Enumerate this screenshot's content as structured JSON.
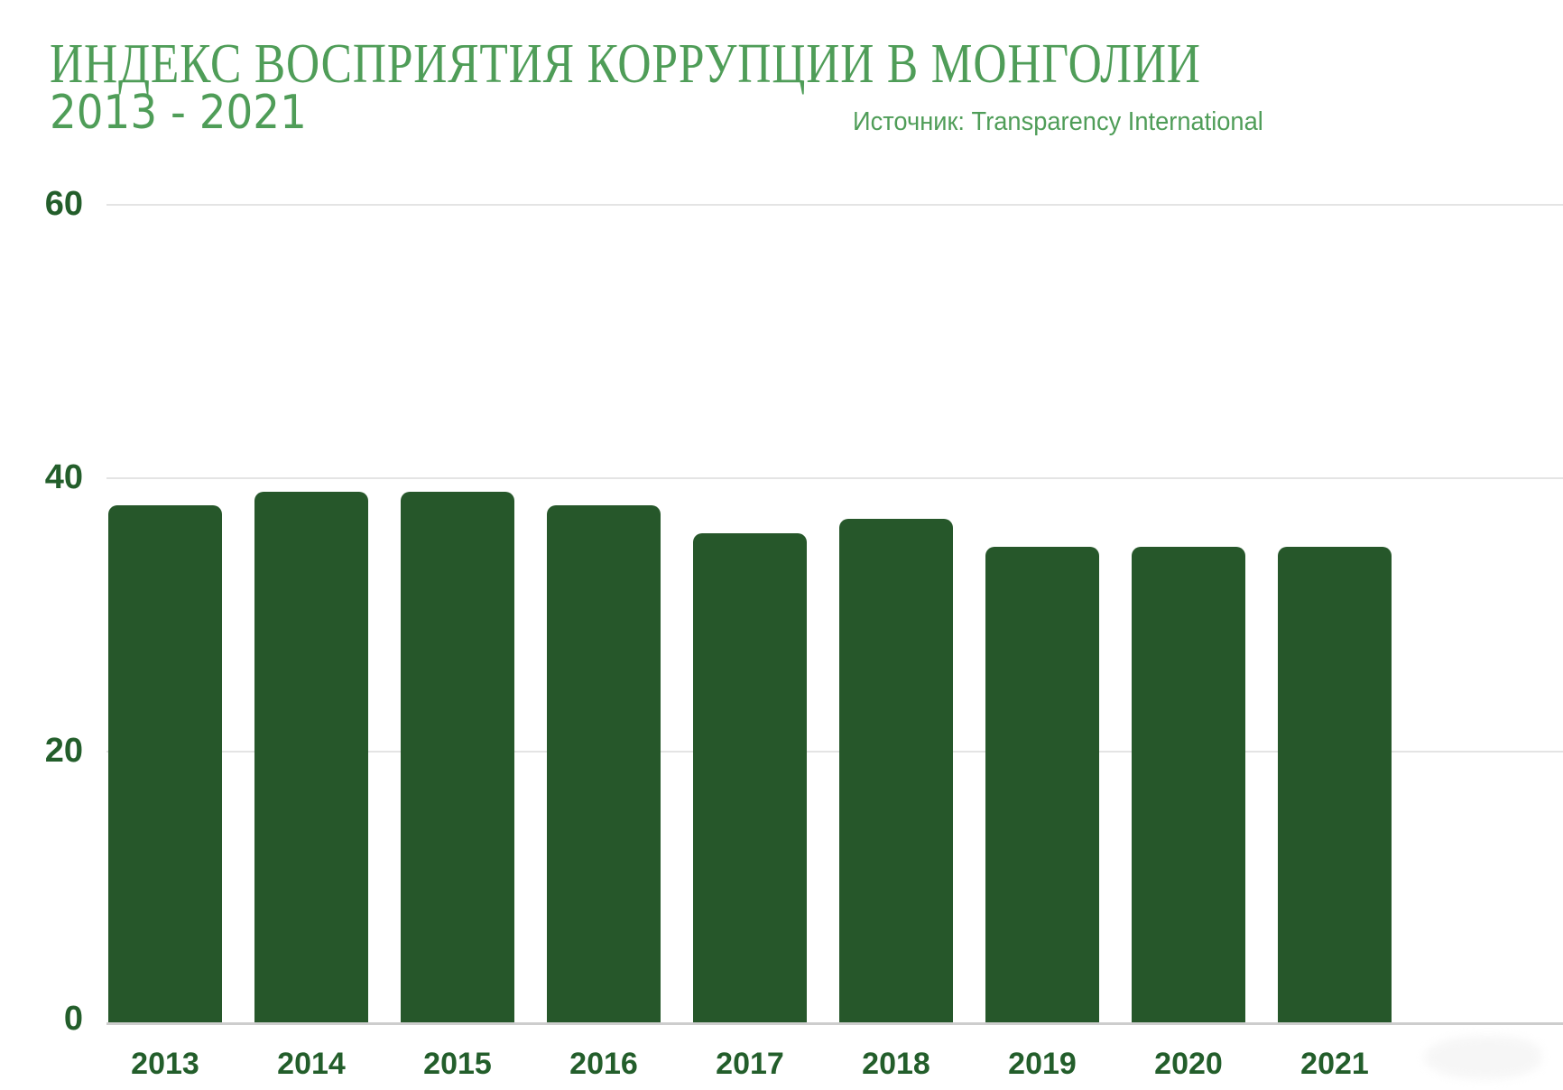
{
  "header": {
    "title_line1": "ИНДЕКС ВОСПРИЯТИЯ КОРРУПЦИИ В МОНГОЛИИ",
    "title_line2": "2013 - 2021",
    "source": "Источник: Transparency International"
  },
  "colors": {
    "bar": "#26572a",
    "title_green": "#4f9d58",
    "axis_label_green": "#235e2b",
    "gridline": "#e4e4e4",
    "baseline": "#cdcdcd",
    "background": "#ffffff"
  },
  "chart_data": {
    "type": "bar",
    "title": "ИНДЕКС ВОСПРИЯТИЯ КОРРУПЦИИ В МОНГОЛИИ 2013 - 2021",
    "source": "Источник: Transparency International",
    "categories": [
      "2013",
      "2014",
      "2015",
      "2016",
      "2017",
      "2018",
      "2019",
      "2020",
      "2021"
    ],
    "values": [
      38,
      39,
      39,
      38,
      36,
      37,
      35,
      35,
      35
    ],
    "xlabel": "",
    "ylabel": "",
    "ylim": [
      0,
      60
    ],
    "yticks": [
      0,
      20,
      40,
      60
    ],
    "grid": true,
    "legend": false,
    "legend_position": "none",
    "bar_color": "#26572a"
  }
}
